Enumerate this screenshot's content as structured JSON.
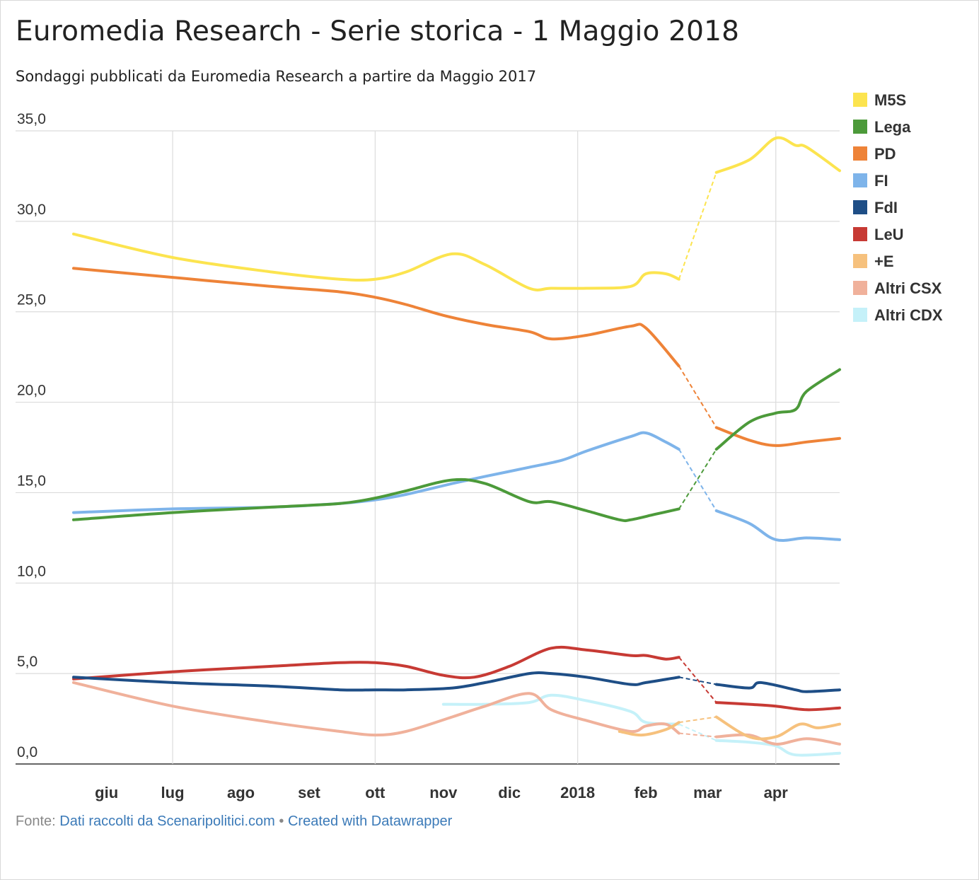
{
  "header": {
    "title": "Euromedia Research - Serie storica - 1 Maggio 2018",
    "subtitle": "Sondaggi pubblicati da Euromedia Research a partire da Maggio 2017"
  },
  "footer": {
    "source_label": "Fonte:",
    "source_link": "Dati raccolti da Scenaripolitici.com",
    "separator": "•",
    "credit_link": "Created with Datawrapper"
  },
  "chart_data": {
    "type": "line",
    "title": "Euromedia Research - Serie storica - 1 Maggio 2018",
    "subtitle": "Sondaggi pubblicati da Euromedia Research a partire da Maggio 2017",
    "xlabel": "",
    "ylabel": "",
    "x_range": [
      "2017-05-17",
      "2018-04-30"
    ],
    "ylim": [
      0,
      35
    ],
    "y_ticks": [
      0,
      5,
      10,
      15,
      20,
      25,
      30,
      35
    ],
    "y_tick_labels": [
      "0,0",
      "5,0",
      "10,0",
      "15,0",
      "20,0",
      "25,0",
      "30,0",
      "35,0"
    ],
    "x_ticks": [
      {
        "date": "2017-06-01",
        "label": "giu",
        "bold": true
      },
      {
        "date": "2017-07-01",
        "label": "lug",
        "bold": true
      },
      {
        "date": "2017-08-01",
        "label": "ago",
        "bold": true
      },
      {
        "date": "2017-09-01",
        "label": "set",
        "bold": true
      },
      {
        "date": "2017-10-01",
        "label": "ott",
        "bold": true
      },
      {
        "date": "2017-11-01",
        "label": "nov",
        "bold": true
      },
      {
        "date": "2017-12-01",
        "label": "dic",
        "bold": true
      },
      {
        "date": "2018-01-01",
        "label": "2018",
        "bold": true
      },
      {
        "date": "2018-02-01",
        "label": "feb",
        "bold": true
      },
      {
        "date": "2018-03-01",
        "label": "mar",
        "bold": true
      },
      {
        "date": "2018-04-01",
        "label": "apr",
        "bold": true
      }
    ],
    "gridlines_x": [
      "2017-07-01",
      "2017-10-01",
      "2018-01-01",
      "2018-04-01"
    ],
    "grid": true,
    "legend_position": "right",
    "gap_dates": [
      "2018-02-16",
      "2018-03-05"
    ],
    "series": [
      {
        "name": "M5S",
        "color": "#fce44f",
        "points": [
          [
            "2017-05-17",
            29.3
          ],
          [
            "2017-07-01",
            28.0
          ],
          [
            "2017-08-15",
            27.2
          ],
          [
            "2017-09-15",
            26.8
          ],
          [
            "2017-10-01",
            26.8
          ],
          [
            "2017-10-15",
            27.2
          ],
          [
            "2017-11-05",
            28.2
          ],
          [
            "2017-11-20",
            27.6
          ],
          [
            "2017-12-10",
            26.3
          ],
          [
            "2017-12-20",
            26.3
          ],
          [
            "2018-01-05",
            26.3
          ],
          [
            "2018-01-25",
            26.4
          ],
          [
            "2018-02-01",
            27.1
          ],
          [
            "2018-02-10",
            27.1
          ],
          [
            "2018-02-16",
            26.8
          ],
          [
            "2018-03-05",
            32.7
          ],
          [
            "2018-03-20",
            33.4
          ],
          [
            "2018-04-01",
            34.6
          ],
          [
            "2018-04-10",
            34.2
          ],
          [
            "2018-04-15",
            34.1
          ],
          [
            "2018-04-30",
            32.8
          ]
        ]
      },
      {
        "name": "Lega",
        "color": "#4c9a3a",
        "points": [
          [
            "2017-05-17",
            13.5
          ],
          [
            "2017-07-01",
            13.9
          ],
          [
            "2017-08-15",
            14.2
          ],
          [
            "2017-09-15",
            14.4
          ],
          [
            "2017-10-01",
            14.7
          ],
          [
            "2017-10-15",
            15.1
          ],
          [
            "2017-11-05",
            15.7
          ],
          [
            "2017-11-20",
            15.5
          ],
          [
            "2017-12-10",
            14.5
          ],
          [
            "2017-12-20",
            14.5
          ],
          [
            "2018-01-05",
            14.0
          ],
          [
            "2018-01-20",
            13.5
          ],
          [
            "2018-01-25",
            13.5
          ],
          [
            "2018-02-05",
            13.8
          ],
          [
            "2018-02-16",
            14.1
          ],
          [
            "2018-03-05",
            17.4
          ],
          [
            "2018-03-20",
            18.9
          ],
          [
            "2018-04-01",
            19.4
          ],
          [
            "2018-04-10",
            19.6
          ],
          [
            "2018-04-15",
            20.6
          ],
          [
            "2018-04-30",
            21.8
          ]
        ]
      },
      {
        "name": "PD",
        "color": "#ee8338",
        "points": [
          [
            "2017-05-17",
            27.4
          ],
          [
            "2017-07-01",
            26.9
          ],
          [
            "2017-08-15",
            26.4
          ],
          [
            "2017-09-15",
            26.1
          ],
          [
            "2017-10-01",
            25.8
          ],
          [
            "2017-10-15",
            25.4
          ],
          [
            "2017-11-01",
            24.8
          ],
          [
            "2017-11-20",
            24.3
          ],
          [
            "2017-12-10",
            23.9
          ],
          [
            "2017-12-20",
            23.5
          ],
          [
            "2018-01-05",
            23.7
          ],
          [
            "2018-01-25",
            24.2
          ],
          [
            "2018-02-01",
            24.1
          ],
          [
            "2018-02-16",
            22.0
          ],
          [
            "2018-03-05",
            18.6
          ],
          [
            "2018-03-20",
            17.9
          ],
          [
            "2018-04-01",
            17.6
          ],
          [
            "2018-04-15",
            17.8
          ],
          [
            "2018-04-30",
            18.0
          ]
        ]
      },
      {
        "name": "FI",
        "color": "#7eb4ea",
        "points": [
          [
            "2017-05-17",
            13.9
          ],
          [
            "2017-07-01",
            14.1
          ],
          [
            "2017-08-15",
            14.2
          ],
          [
            "2017-09-15",
            14.4
          ],
          [
            "2017-10-01",
            14.6
          ],
          [
            "2017-10-15",
            14.9
          ],
          [
            "2017-11-05",
            15.5
          ],
          [
            "2017-11-20",
            15.9
          ],
          [
            "2017-12-10",
            16.4
          ],
          [
            "2017-12-25",
            16.8
          ],
          [
            "2018-01-05",
            17.3
          ],
          [
            "2018-01-25",
            18.1
          ],
          [
            "2018-02-01",
            18.3
          ],
          [
            "2018-02-10",
            17.8
          ],
          [
            "2018-02-16",
            17.4
          ],
          [
            "2018-03-05",
            14.0
          ],
          [
            "2018-03-20",
            13.3
          ],
          [
            "2018-04-01",
            12.4
          ],
          [
            "2018-04-15",
            12.5
          ],
          [
            "2018-04-30",
            12.4
          ]
        ]
      },
      {
        "name": "FdI",
        "color": "#1e4e86",
        "points": [
          [
            "2017-05-17",
            4.8
          ],
          [
            "2017-07-01",
            4.5
          ],
          [
            "2017-08-15",
            4.3
          ],
          [
            "2017-09-15",
            4.1
          ],
          [
            "2017-10-01",
            4.1
          ],
          [
            "2017-10-15",
            4.1
          ],
          [
            "2017-11-05",
            4.2
          ],
          [
            "2017-11-20",
            4.5
          ],
          [
            "2017-12-10",
            5.0
          ],
          [
            "2017-12-20",
            5.0
          ],
          [
            "2018-01-05",
            4.8
          ],
          [
            "2018-01-25",
            4.4
          ],
          [
            "2018-02-01",
            4.5
          ],
          [
            "2018-02-16",
            4.8
          ],
          [
            "2018-03-05",
            4.4
          ],
          [
            "2018-03-20",
            4.2
          ],
          [
            "2018-03-25",
            4.5
          ],
          [
            "2018-04-10",
            4.1
          ],
          [
            "2018-04-15",
            4.0
          ],
          [
            "2018-04-30",
            4.1
          ]
        ]
      },
      {
        "name": "LeU",
        "color": "#c73a34",
        "points": [
          [
            "2017-05-17",
            4.7
          ],
          [
            "2017-07-01",
            5.1
          ],
          [
            "2017-08-15",
            5.4
          ],
          [
            "2017-09-15",
            5.6
          ],
          [
            "2017-10-01",
            5.6
          ],
          [
            "2017-10-15",
            5.4
          ],
          [
            "2017-11-01",
            4.9
          ],
          [
            "2017-11-15",
            4.8
          ],
          [
            "2017-12-01",
            5.4
          ],
          [
            "2017-12-20",
            6.4
          ],
          [
            "2018-01-05",
            6.3
          ],
          [
            "2018-01-25",
            6.0
          ],
          [
            "2018-02-01",
            6.0
          ],
          [
            "2018-02-10",
            5.8
          ],
          [
            "2018-02-16",
            5.9
          ],
          [
            "2018-03-05",
            3.4
          ],
          [
            "2018-03-20",
            3.3
          ],
          [
            "2018-04-01",
            3.2
          ],
          [
            "2018-04-15",
            3.0
          ],
          [
            "2018-04-30",
            3.1
          ]
        ]
      },
      {
        "name": "+E",
        "color": "#f6c17d",
        "points": [
          [
            "2018-01-20",
            1.8
          ],
          [
            "2018-01-30",
            1.6
          ],
          [
            "2018-02-10",
            1.9
          ],
          [
            "2018-02-16",
            2.3
          ],
          [
            "2018-03-05",
            2.6
          ],
          [
            "2018-03-20",
            1.5
          ],
          [
            "2018-04-01",
            1.5
          ],
          [
            "2018-04-12",
            2.2
          ],
          [
            "2018-04-20",
            2.0
          ],
          [
            "2018-04-30",
            2.2
          ]
        ]
      },
      {
        "name": "Altri CSX",
        "color": "#f0b19b",
        "points": [
          [
            "2017-05-17",
            4.5
          ],
          [
            "2017-07-01",
            3.2
          ],
          [
            "2017-08-15",
            2.3
          ],
          [
            "2017-09-15",
            1.8
          ],
          [
            "2017-10-01",
            1.6
          ],
          [
            "2017-10-15",
            1.8
          ],
          [
            "2017-11-05",
            2.6
          ],
          [
            "2017-11-20",
            3.2
          ],
          [
            "2017-12-10",
            3.9
          ],
          [
            "2017-12-20",
            3.0
          ],
          [
            "2018-01-05",
            2.4
          ],
          [
            "2018-01-25",
            1.8
          ],
          [
            "2018-02-01",
            2.1
          ],
          [
            "2018-02-10",
            2.2
          ],
          [
            "2018-02-16",
            1.7
          ],
          [
            "2018-03-05",
            1.5
          ],
          [
            "2018-03-20",
            1.6
          ],
          [
            "2018-04-01",
            1.1
          ],
          [
            "2018-04-15",
            1.4
          ],
          [
            "2018-04-30",
            1.1
          ]
        ]
      },
      {
        "name": "Altri CDX",
        "color": "#c5f1f9",
        "points": [
          [
            "2017-11-01",
            3.3
          ],
          [
            "2017-11-20",
            3.3
          ],
          [
            "2017-12-10",
            3.4
          ],
          [
            "2017-12-20",
            3.8
          ],
          [
            "2018-01-05",
            3.5
          ],
          [
            "2018-01-25",
            2.9
          ],
          [
            "2018-02-01",
            2.3
          ],
          [
            "2018-02-16",
            2.2
          ],
          [
            "2018-03-05",
            1.3
          ],
          [
            "2018-03-20",
            1.2
          ],
          [
            "2018-04-01",
            1.0
          ],
          [
            "2018-04-10",
            0.5
          ],
          [
            "2018-04-30",
            0.6
          ]
        ]
      }
    ]
  }
}
